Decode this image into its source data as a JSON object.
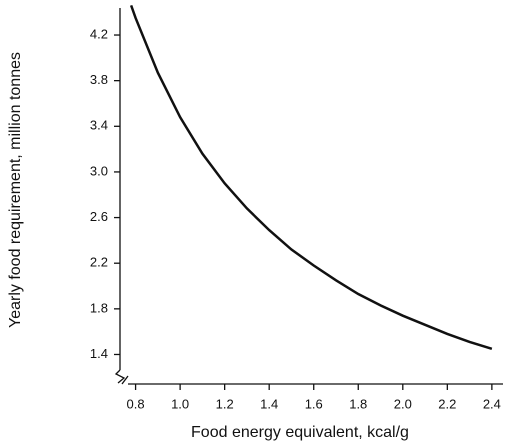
{
  "chart_data": {
    "type": "line",
    "x_label": "Food energy equivalent, kcal/g",
    "y_label": "Yearly food requirement, million tonnes",
    "x": [
      0.78,
      0.8,
      0.9,
      1.0,
      1.1,
      1.2,
      1.3,
      1.4,
      1.5,
      1.6,
      1.7,
      1.8,
      1.9,
      2.0,
      2.1,
      2.2,
      2.3,
      2.4
    ],
    "series": [
      {
        "color": "#111111",
        "values": [
          4.46,
          4.35,
          3.87,
          3.48,
          3.16,
          2.9,
          2.68,
          2.49,
          2.32,
          2.18,
          2.05,
          1.93,
          1.83,
          1.74,
          1.66,
          1.58,
          1.51,
          1.45
        ]
      }
    ],
    "xlim": [
      0.73,
      2.45
    ],
    "ylim": [
      1.15,
      4.45
    ],
    "xticks": [
      0.8,
      {
        "value": 1,
        "label": "1.0"
      },
      1.2,
      1.4,
      1.6,
      1.8,
      {
        "value": 2,
        "label": "2.0"
      },
      2.2,
      2.4
    ],
    "yticks": [
      1.4,
      1.8,
      2.2,
      2.6,
      {
        "value": 3,
        "label": "3.0"
      },
      3.4,
      3.8,
      4.2
    ],
    "grid": false
  }
}
